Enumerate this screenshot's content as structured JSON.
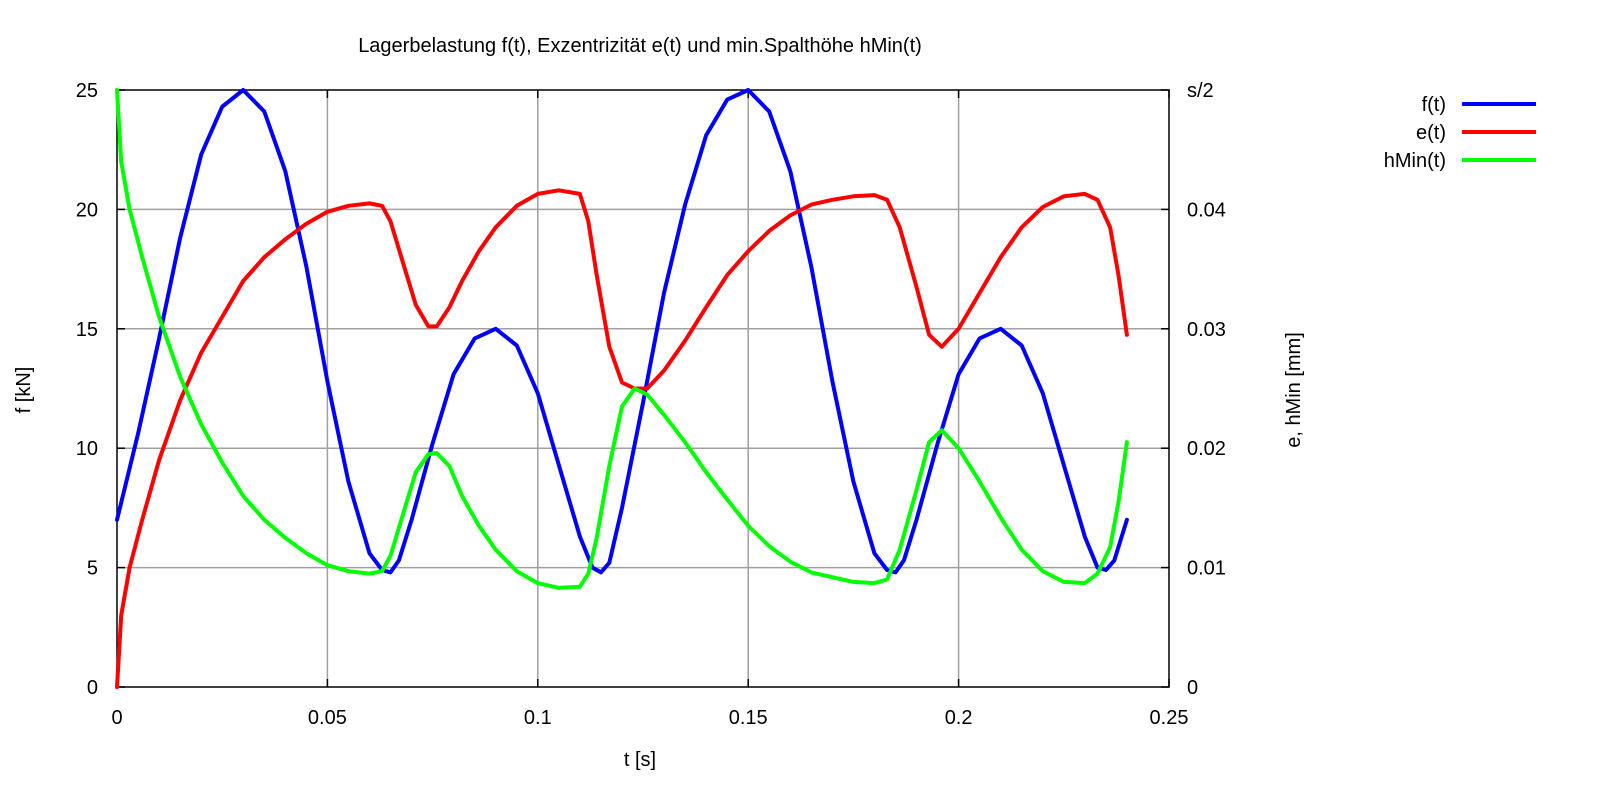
{
  "chart_data": {
    "type": "line",
    "title": "Lagerbelastung f(t), Exzentrizität e(t) und min.Spalthöhe hMin(t)",
    "xlabel": "t [s]",
    "ylabel": "f [kN]",
    "y2label": "e, hMin [mm]",
    "xlim": [
      0,
      0.25
    ],
    "ylim": [
      0,
      25
    ],
    "y2lim": [
      0,
      0.05
    ],
    "x_ticks": [
      "0",
      "0.05",
      "0.1",
      "0.15",
      "0.2",
      "0.25"
    ],
    "y_ticks": [
      "0",
      "5",
      "10",
      "15",
      "20",
      "25"
    ],
    "y2_ticks": [
      "0",
      "0.01",
      "0.02",
      "0.03",
      "0.04",
      "s/2"
    ],
    "grid": true,
    "legend_position": "top-right outside",
    "series": [
      {
        "name": "f(t)",
        "color": "#0000ff",
        "axis": "y",
        "x": [
          0,
          0.005,
          0.01,
          0.015,
          0.02,
          0.025,
          0.03,
          0.035,
          0.04,
          0.045,
          0.05,
          0.055,
          0.06,
          0.063,
          0.065,
          0.067,
          0.07,
          0.075,
          0.08,
          0.085,
          0.09,
          0.095,
          0.1,
          0.105,
          0.11,
          0.113,
          0.115,
          0.117,
          0.12,
          0.125,
          0.13,
          0.135,
          0.14,
          0.145,
          0.15,
          0.155,
          0.16,
          0.165,
          0.17,
          0.175,
          0.18,
          0.183,
          0.185,
          0.187,
          0.19,
          0.195,
          0.2,
          0.205,
          0.21,
          0.215,
          0.22,
          0.225,
          0.23,
          0.233,
          0.235,
          0.237,
          0.24
        ],
        "y": [
          7.0,
          10.6,
          14.6,
          18.8,
          22.3,
          24.3,
          25.0,
          24.1,
          21.6,
          17.6,
          12.8,
          8.6,
          5.6,
          4.9,
          4.8,
          5.3,
          7.0,
          10.2,
          13.1,
          14.6,
          15.0,
          14.3,
          12.3,
          9.3,
          6.3,
          5.0,
          4.8,
          5.2,
          7.5,
          11.9,
          16.5,
          20.2,
          23.1,
          24.6,
          25.0,
          24.1,
          21.6,
          17.6,
          12.8,
          8.6,
          5.6,
          4.9,
          4.8,
          5.3,
          7.0,
          10.2,
          13.1,
          14.6,
          15.0,
          14.3,
          12.3,
          9.3,
          6.3,
          5.0,
          4.9,
          5.3,
          7.0
        ]
      },
      {
        "name": "e(t)",
        "color": "#ff0000",
        "axis": "y2",
        "x": [
          0,
          0.001,
          0.003,
          0.006,
          0.01,
          0.015,
          0.02,
          0.025,
          0.03,
          0.035,
          0.04,
          0.045,
          0.05,
          0.055,
          0.06,
          0.063,
          0.065,
          0.068,
          0.071,
          0.074,
          0.076,
          0.079,
          0.082,
          0.086,
          0.09,
          0.095,
          0.1,
          0.105,
          0.11,
          0.112,
          0.114,
          0.117,
          0.12,
          0.123,
          0.126,
          0.13,
          0.135,
          0.14,
          0.145,
          0.15,
          0.155,
          0.16,
          0.165,
          0.17,
          0.175,
          0.18,
          0.183,
          0.186,
          0.19,
          0.193,
          0.196,
          0.2,
          0.205,
          0.21,
          0.215,
          0.22,
          0.225,
          0.23,
          0.233,
          0.236,
          0.238,
          0.24
        ],
        "y": [
          0.0,
          0.006,
          0.01,
          0.014,
          0.019,
          0.024,
          0.028,
          0.031,
          0.034,
          0.036,
          0.0375,
          0.0388,
          0.0398,
          0.0403,
          0.0405,
          0.0403,
          0.039,
          0.0355,
          0.032,
          0.0302,
          0.0302,
          0.0318,
          0.034,
          0.0365,
          0.0385,
          0.0403,
          0.0413,
          0.0416,
          0.0413,
          0.039,
          0.0345,
          0.0285,
          0.0255,
          0.025,
          0.025,
          0.0265,
          0.029,
          0.0318,
          0.0345,
          0.0365,
          0.0382,
          0.0395,
          0.0404,
          0.0408,
          0.0411,
          0.0412,
          0.0408,
          0.0385,
          0.0335,
          0.0295,
          0.0285,
          0.03,
          0.033,
          0.036,
          0.0385,
          0.0402,
          0.0411,
          0.0413,
          0.0408,
          0.0385,
          0.0345,
          0.0295
        ]
      },
      {
        "name": "hMin(t)",
        "color": "#00ff00",
        "axis": "y2",
        "x": [
          0,
          0.001,
          0.003,
          0.006,
          0.01,
          0.015,
          0.02,
          0.025,
          0.03,
          0.035,
          0.04,
          0.045,
          0.05,
          0.055,
          0.06,
          0.063,
          0.065,
          0.068,
          0.071,
          0.074,
          0.076,
          0.079,
          0.082,
          0.086,
          0.09,
          0.095,
          0.1,
          0.105,
          0.11,
          0.112,
          0.114,
          0.117,
          0.12,
          0.123,
          0.126,
          0.13,
          0.135,
          0.14,
          0.145,
          0.15,
          0.155,
          0.16,
          0.165,
          0.17,
          0.175,
          0.18,
          0.183,
          0.186,
          0.19,
          0.193,
          0.196,
          0.2,
          0.205,
          0.21,
          0.215,
          0.22,
          0.225,
          0.23,
          0.233,
          0.236,
          0.238,
          0.24
        ],
        "y": [
          0.05,
          0.044,
          0.04,
          0.036,
          0.031,
          0.026,
          0.022,
          0.0188,
          0.016,
          0.014,
          0.0125,
          0.0112,
          0.0102,
          0.0097,
          0.0095,
          0.0097,
          0.011,
          0.0145,
          0.018,
          0.0195,
          0.0196,
          0.0185,
          0.016,
          0.0135,
          0.0115,
          0.0097,
          0.0087,
          0.0083,
          0.0084,
          0.0095,
          0.0125,
          0.0185,
          0.0235,
          0.025,
          0.0245,
          0.0228,
          0.0205,
          0.018,
          0.0157,
          0.0135,
          0.0118,
          0.0105,
          0.0096,
          0.0092,
          0.0088,
          0.0087,
          0.009,
          0.0115,
          0.0165,
          0.0205,
          0.0215,
          0.02,
          0.0172,
          0.0142,
          0.0115,
          0.0097,
          0.0088,
          0.0087,
          0.0095,
          0.0117,
          0.0155,
          0.0205
        ]
      }
    ]
  }
}
